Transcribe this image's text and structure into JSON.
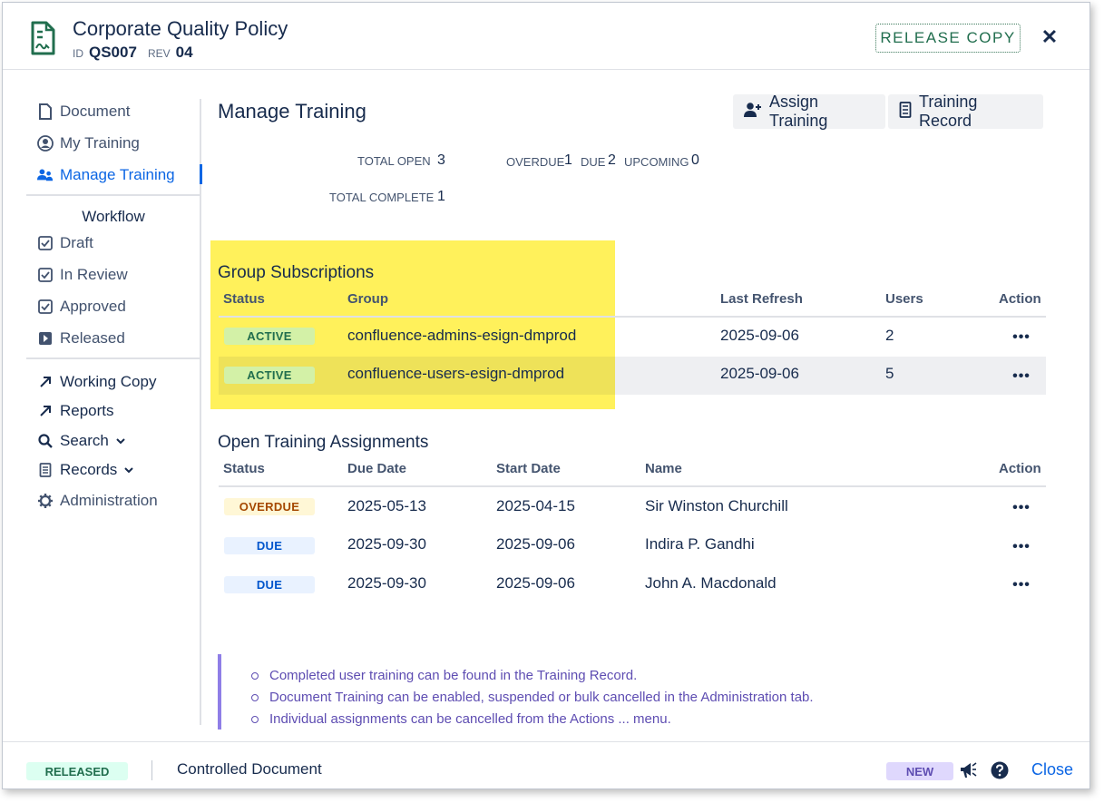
{
  "header": {
    "title": "Corporate Quality Policy",
    "id_label": "ID",
    "id_value": "QS007",
    "rev_label": "REV",
    "rev_value": "04",
    "release_copy_label": "RELEASE COPY",
    "close_glyph": "✕"
  },
  "sidebar": {
    "nav": [
      {
        "label": "Document",
        "icon": "document-icon"
      },
      {
        "label": "My Training",
        "icon": "user-circle-icon"
      },
      {
        "label": "Manage Training",
        "icon": "people-icon",
        "active": true
      }
    ],
    "workflow_heading": "Workflow",
    "workflow": [
      {
        "label": "Draft",
        "icon": "checkbox-icon"
      },
      {
        "label": "In Review",
        "icon": "checkbox-icon"
      },
      {
        "label": "Approved",
        "icon": "checkbox-icon"
      },
      {
        "label": "Released",
        "icon": "play-icon"
      }
    ],
    "links": [
      {
        "label": "Working Copy",
        "icon": "arrow-up-right-icon"
      },
      {
        "label": "Reports",
        "icon": "arrow-up-right-icon"
      },
      {
        "label": "Search",
        "icon": "search-icon",
        "chevron": "⌄"
      },
      {
        "label": "Records",
        "icon": "records-icon",
        "chevron": "⌄"
      },
      {
        "label": "Administration",
        "icon": "gear-icon"
      }
    ]
  },
  "main": {
    "title": "Manage Training",
    "assign_training_label": "Assign Training",
    "training_record_label": "Training Record",
    "stats": {
      "total_open_label": "TOTAL OPEN",
      "total_open": "3",
      "overdue_label": "OVERDUE",
      "overdue": "1",
      "due_label": "DUE",
      "due": "2",
      "upcoming_label": "UPCOMING",
      "upcoming": "0",
      "total_complete_label": "TOTAL COMPLETE",
      "total_complete": "1"
    },
    "group_subscriptions": {
      "title": "Group Subscriptions",
      "headers": {
        "status": "Status",
        "group": "Group",
        "last_refresh": "Last Refresh",
        "users": "Users",
        "action": "Action"
      },
      "rows": [
        {
          "status": "ACTIVE",
          "group": "confluence-admins-esign-dmprod",
          "last_refresh": "2025-09-06",
          "users": "2",
          "action": "•••"
        },
        {
          "status": "ACTIVE",
          "group": "confluence-users-esign-dmprod",
          "last_refresh": "2025-09-06",
          "users": "5",
          "action": "•••"
        }
      ]
    },
    "open_assignments": {
      "title": "Open Training Assignments",
      "headers": {
        "status": "Status",
        "due_date": "Due Date",
        "start_date": "Start Date",
        "name": "Name",
        "action": "Action"
      },
      "rows": [
        {
          "status": "OVERDUE",
          "due_date": "2025-05-13",
          "start_date": "2025-04-15",
          "name": "Sir Winston Churchill",
          "action": "•••"
        },
        {
          "status": "DUE",
          "due_date": "2025-09-30",
          "start_date": "2025-09-06",
          "name": "Indira P. Gandhi",
          "action": "•••"
        },
        {
          "status": "DUE",
          "due_date": "2025-09-30",
          "start_date": "2025-09-06",
          "name": "John A. Macdonald",
          "action": "•••"
        }
      ]
    },
    "notes": [
      "Completed user training can be found in the Training Record.",
      "Document Training can be enabled, suspended or bulk cancelled in the Administration tab.",
      "Individual assignments can be cancelled from the Actions ... menu."
    ]
  },
  "footer": {
    "status_badge": "RELEASED",
    "doc_type": "Controlled Document",
    "new_badge": "NEW",
    "close_label": "Close"
  },
  "colors": {
    "accent": "#0c66e4",
    "highlight": "#ffef3e",
    "active_lozenge": "#d3f1a7",
    "overdue_lozenge": "#fff7d6",
    "due_lozenge": "#e9f2ff",
    "note_border": "#8f7ee7"
  }
}
